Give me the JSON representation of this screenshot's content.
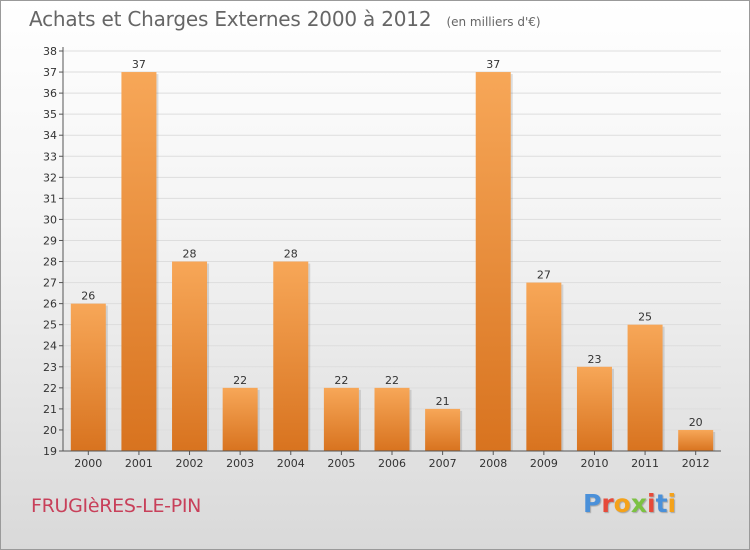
{
  "header": {
    "title": "Achats et Charges Externes 2000 à 2012",
    "subtitle": "(en milliers d'€)"
  },
  "footer": {
    "commune": "FRUGIèRES-LE-PIN",
    "logo_text": "Proxiti",
    "logo_letter_colors": [
      "#4a90d9",
      "#e64a3a",
      "#f4a21a",
      "#7cc142",
      "#e64a3a",
      "#4a90d9",
      "#f4a21a"
    ]
  },
  "colors": {
    "bar_top": "#f7a758",
    "bar_bottom": "#d8731f",
    "grid": "#dddddd",
    "axis": "#555555"
  },
  "chart_data": {
    "type": "bar",
    "categories": [
      "2000",
      "2001",
      "2002",
      "2003",
      "2004",
      "2005",
      "2006",
      "2007",
      "2008",
      "2009",
      "2010",
      "2011",
      "2012"
    ],
    "values": [
      26,
      37,
      28,
      22,
      28,
      22,
      22,
      21,
      37,
      27,
      23,
      25,
      20
    ],
    "ylim": [
      19,
      38
    ],
    "yticks": [
      19,
      20,
      21,
      22,
      23,
      24,
      25,
      26,
      27,
      28,
      29,
      30,
      31,
      32,
      33,
      34,
      35,
      36,
      37,
      38
    ],
    "grid": true
  }
}
